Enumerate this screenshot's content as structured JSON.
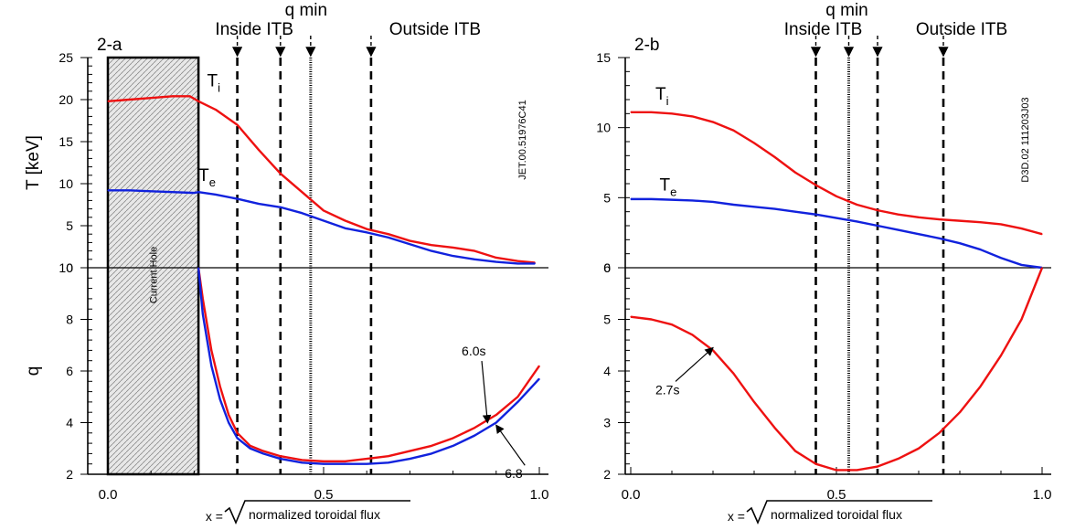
{
  "global": {
    "xlabel_prefix": "x = ",
    "xlabel_text": "normalized toroidal flux",
    "qmin_label": "q min",
    "inside_label": "Inside ITB",
    "outside_label": "Outside ITB",
    "ylabel_T": "T [keV]",
    "ylabel_q": "q"
  },
  "chart_data": [
    {
      "type": "line",
      "panel": "2-a",
      "shot_label": "JET.00.51976C41",
      "current_hole_label": "Current Hole",
      "current_hole_range": [
        0.0,
        0.21
      ],
      "dashed_lines_x": [
        0.3,
        0.4,
        0.61
      ],
      "dotted_line_x": 0.47,
      "arrow_xs": [
        0.3,
        0.4,
        0.47,
        0.61
      ],
      "xlim": [
        -0.04,
        1.0
      ],
      "xticks": [
        0.0,
        0.5,
        1.0
      ],
      "xtick_labels": [
        "0.0",
        "0.5",
        "1.0"
      ],
      "top": {
        "ylim": [
          0,
          25
        ],
        "yticks": [
          0,
          5,
          10,
          15,
          20,
          25
        ],
        "series": [
          {
            "name": "T_i",
            "color": "#ee1111",
            "x": [
              0.0,
              0.05,
              0.1,
              0.15,
              0.19,
              0.21,
              0.25,
              0.3,
              0.35,
              0.4,
              0.45,
              0.5,
              0.55,
              0.6,
              0.65,
              0.7,
              0.75,
              0.8,
              0.85,
              0.9,
              0.95,
              0.99
            ],
            "y": [
              19.8,
              20.0,
              20.2,
              20.4,
              20.4,
              19.8,
              18.8,
              17.0,
              14.0,
              11.2,
              9.0,
              6.8,
              5.6,
              4.6,
              4.0,
              3.2,
              2.7,
              2.4,
              2.0,
              1.2,
              0.8,
              0.6
            ]
          },
          {
            "name": "T_e",
            "color": "#1122dd",
            "x": [
              0.0,
              0.05,
              0.1,
              0.15,
              0.2,
              0.21,
              0.25,
              0.3,
              0.35,
              0.4,
              0.45,
              0.5,
              0.55,
              0.6,
              0.65,
              0.7,
              0.75,
              0.8,
              0.85,
              0.9,
              0.95,
              0.99
            ],
            "y": [
              9.2,
              9.2,
              9.1,
              9.0,
              8.9,
              9.0,
              8.7,
              8.2,
              7.6,
              7.2,
              6.5,
              5.6,
              4.7,
              4.2,
              3.6,
              2.8,
              2.0,
              1.4,
              1.0,
              0.7,
              0.5,
              0.5
            ]
          }
        ],
        "labels": [
          {
            "base": "T",
            "sub": "i",
            "x": 0.23,
            "y": 21.6
          },
          {
            "base": "T",
            "sub": "e",
            "x": 0.21,
            "y": 10.3
          }
        ]
      },
      "bottom": {
        "ylim": [
          2,
          10
        ],
        "yticks": [
          2,
          4,
          6,
          8,
          10
        ],
        "series": [
          {
            "name": "6.0s",
            "color": "#ee1111",
            "x": [
              0.21,
              0.22,
              0.24,
              0.26,
              0.28,
              0.3,
              0.33,
              0.36,
              0.4,
              0.45,
              0.5,
              0.55,
              0.6,
              0.65,
              0.7,
              0.75,
              0.8,
              0.85,
              0.9,
              0.95,
              1.0
            ],
            "y": [
              10.0,
              8.8,
              6.8,
              5.4,
              4.3,
              3.6,
              3.1,
              2.9,
              2.7,
              2.55,
              2.5,
              2.5,
              2.6,
              2.7,
              2.9,
              3.1,
              3.4,
              3.8,
              4.3,
              5.0,
              6.2
            ]
          },
          {
            "name": "6.8",
            "color": "#1122dd",
            "x": [
              0.21,
              0.22,
              0.24,
              0.26,
              0.28,
              0.3,
              0.33,
              0.36,
              0.4,
              0.45,
              0.5,
              0.55,
              0.6,
              0.65,
              0.7,
              0.75,
              0.8,
              0.85,
              0.9,
              0.95,
              1.0
            ],
            "y": [
              10.0,
              8.2,
              6.2,
              4.9,
              4.0,
              3.4,
              3.0,
              2.8,
              2.6,
              2.45,
              2.4,
              2.4,
              2.4,
              2.45,
              2.6,
              2.8,
              3.1,
              3.5,
              4.0,
              4.8,
              5.7
            ]
          }
        ],
        "annotations": [
          {
            "text": "6.0s",
            "x": 0.82,
            "y": 6.6,
            "arrow_to": [
              0.88,
              4.0
            ]
          },
          {
            "text": "6.8",
            "x": 0.92,
            "y": 1.85,
            "arrow_to": [
              0.9,
              3.9
            ]
          }
        ]
      }
    },
    {
      "type": "line",
      "panel": "2-b",
      "shot_label": "D3D.02 111203J03",
      "dashed_lines_x": [
        0.45,
        0.6,
        0.76
      ],
      "dotted_line_x": 0.53,
      "arrow_xs": [
        0.45,
        0.53,
        0.6,
        0.76
      ],
      "xlim": [
        -0.02,
        1.0
      ],
      "xticks": [
        0.0,
        0.5,
        1.0
      ],
      "xtick_labels": [
        "0.0",
        "0.5",
        "1.0"
      ],
      "top": {
        "ylim": [
          0,
          15
        ],
        "yticks": [
          0,
          5,
          10,
          15
        ],
        "series": [
          {
            "name": "T_i",
            "color": "#ee1111",
            "x": [
              0.0,
              0.05,
              0.1,
              0.15,
              0.2,
              0.25,
              0.3,
              0.35,
              0.4,
              0.45,
              0.5,
              0.55,
              0.6,
              0.65,
              0.7,
              0.75,
              0.8,
              0.85,
              0.9,
              0.95,
              1.0
            ],
            "y": [
              11.1,
              11.1,
              11.0,
              10.8,
              10.4,
              9.8,
              8.9,
              7.9,
              6.8,
              5.9,
              5.1,
              4.5,
              4.1,
              3.8,
              3.6,
              3.45,
              3.35,
              3.25,
              3.1,
              2.8,
              2.4
            ]
          },
          {
            "name": "T_e",
            "color": "#1122dd",
            "x": [
              0.0,
              0.05,
              0.1,
              0.15,
              0.2,
              0.25,
              0.3,
              0.35,
              0.4,
              0.45,
              0.5,
              0.55,
              0.6,
              0.65,
              0.7,
              0.75,
              0.8,
              0.85,
              0.9,
              0.95,
              1.0
            ],
            "y": [
              4.9,
              4.9,
              4.85,
              4.8,
              4.7,
              4.5,
              4.35,
              4.2,
              4.0,
              3.8,
              3.55,
              3.3,
              3.0,
              2.7,
              2.4,
              2.1,
              1.75,
              1.3,
              0.7,
              0.2,
              0.0
            ]
          }
        ],
        "labels": [
          {
            "base": "T",
            "sub": "i",
            "x": 0.06,
            "y": 12.0
          },
          {
            "base": "T",
            "sub": "e",
            "x": 0.07,
            "y": 5.5
          }
        ]
      },
      "bottom": {
        "ylim": [
          2,
          6
        ],
        "yticks": [
          2,
          3,
          4,
          5,
          6
        ],
        "series": [
          {
            "name": "2.7s",
            "color": "#ee1111",
            "x": [
              0.0,
              0.05,
              0.1,
              0.15,
              0.2,
              0.25,
              0.3,
              0.35,
              0.4,
              0.45,
              0.5,
              0.55,
              0.6,
              0.65,
              0.7,
              0.75,
              0.8,
              0.85,
              0.9,
              0.95,
              1.0
            ],
            "y": [
              5.05,
              5.0,
              4.9,
              4.7,
              4.4,
              3.95,
              3.4,
              2.9,
              2.45,
              2.2,
              2.08,
              2.08,
              2.15,
              2.3,
              2.5,
              2.8,
              3.2,
              3.7,
              4.3,
              5.0,
              6.0
            ]
          }
        ],
        "annotations": [
          {
            "text": "2.7s",
            "x": 0.06,
            "y": 3.55,
            "arrow_to": [
              0.2,
              4.45
            ]
          }
        ]
      }
    }
  ]
}
